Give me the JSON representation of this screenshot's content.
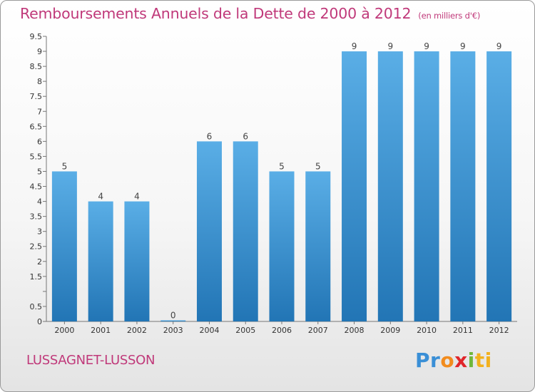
{
  "header": {
    "title": "Remboursements Annuels de la Dette de 2000 à 2012",
    "unit": "(en milliers d'€)"
  },
  "footer": {
    "commune": "LUSSAGNET-LUSSON",
    "logo_letters": [
      "P",
      "r",
      "o",
      "x",
      "i",
      "ti"
    ]
  },
  "colors": {
    "title": "#c0397a",
    "bar_top": "#5aaee6",
    "bar_bottom": "#2275b5"
  },
  "chart_data": {
    "type": "bar",
    "title": "Remboursements Annuels de la Dette de 2000 à 2012",
    "categories": [
      "2000",
      "2001",
      "2002",
      "2003",
      "2004",
      "2005",
      "2006",
      "2007",
      "2008",
      "2009",
      "2010",
      "2011",
      "2012"
    ],
    "values": [
      5,
      4,
      4,
      0,
      6,
      6,
      5,
      5,
      9,
      9,
      9,
      9,
      9
    ],
    "value_labels": [
      "5",
      "4",
      "4",
      "0",
      "6",
      "6",
      "5",
      "5",
      "9",
      "9",
      "9",
      "9",
      "9"
    ],
    "ylim": [
      0,
      9.5
    ],
    "yticks": [
      0,
      0.5,
      1,
      1.5,
      2,
      2.5,
      3,
      3.5,
      4,
      4.5,
      5,
      5.5,
      6,
      6.5,
      7,
      7.5,
      8,
      8.5,
      9,
      9.5
    ],
    "ytick_labels": [
      "0",
      "0.5",
      "",
      "1.5",
      "2",
      "2.5",
      "3",
      "3.5",
      "4",
      "4.5",
      "5",
      "5.5",
      "6",
      "6.5",
      "7",
      "7.5",
      "8",
      "8.5",
      "9",
      "9.5"
    ],
    "grid": false,
    "xlabel": "",
    "ylabel": ""
  }
}
